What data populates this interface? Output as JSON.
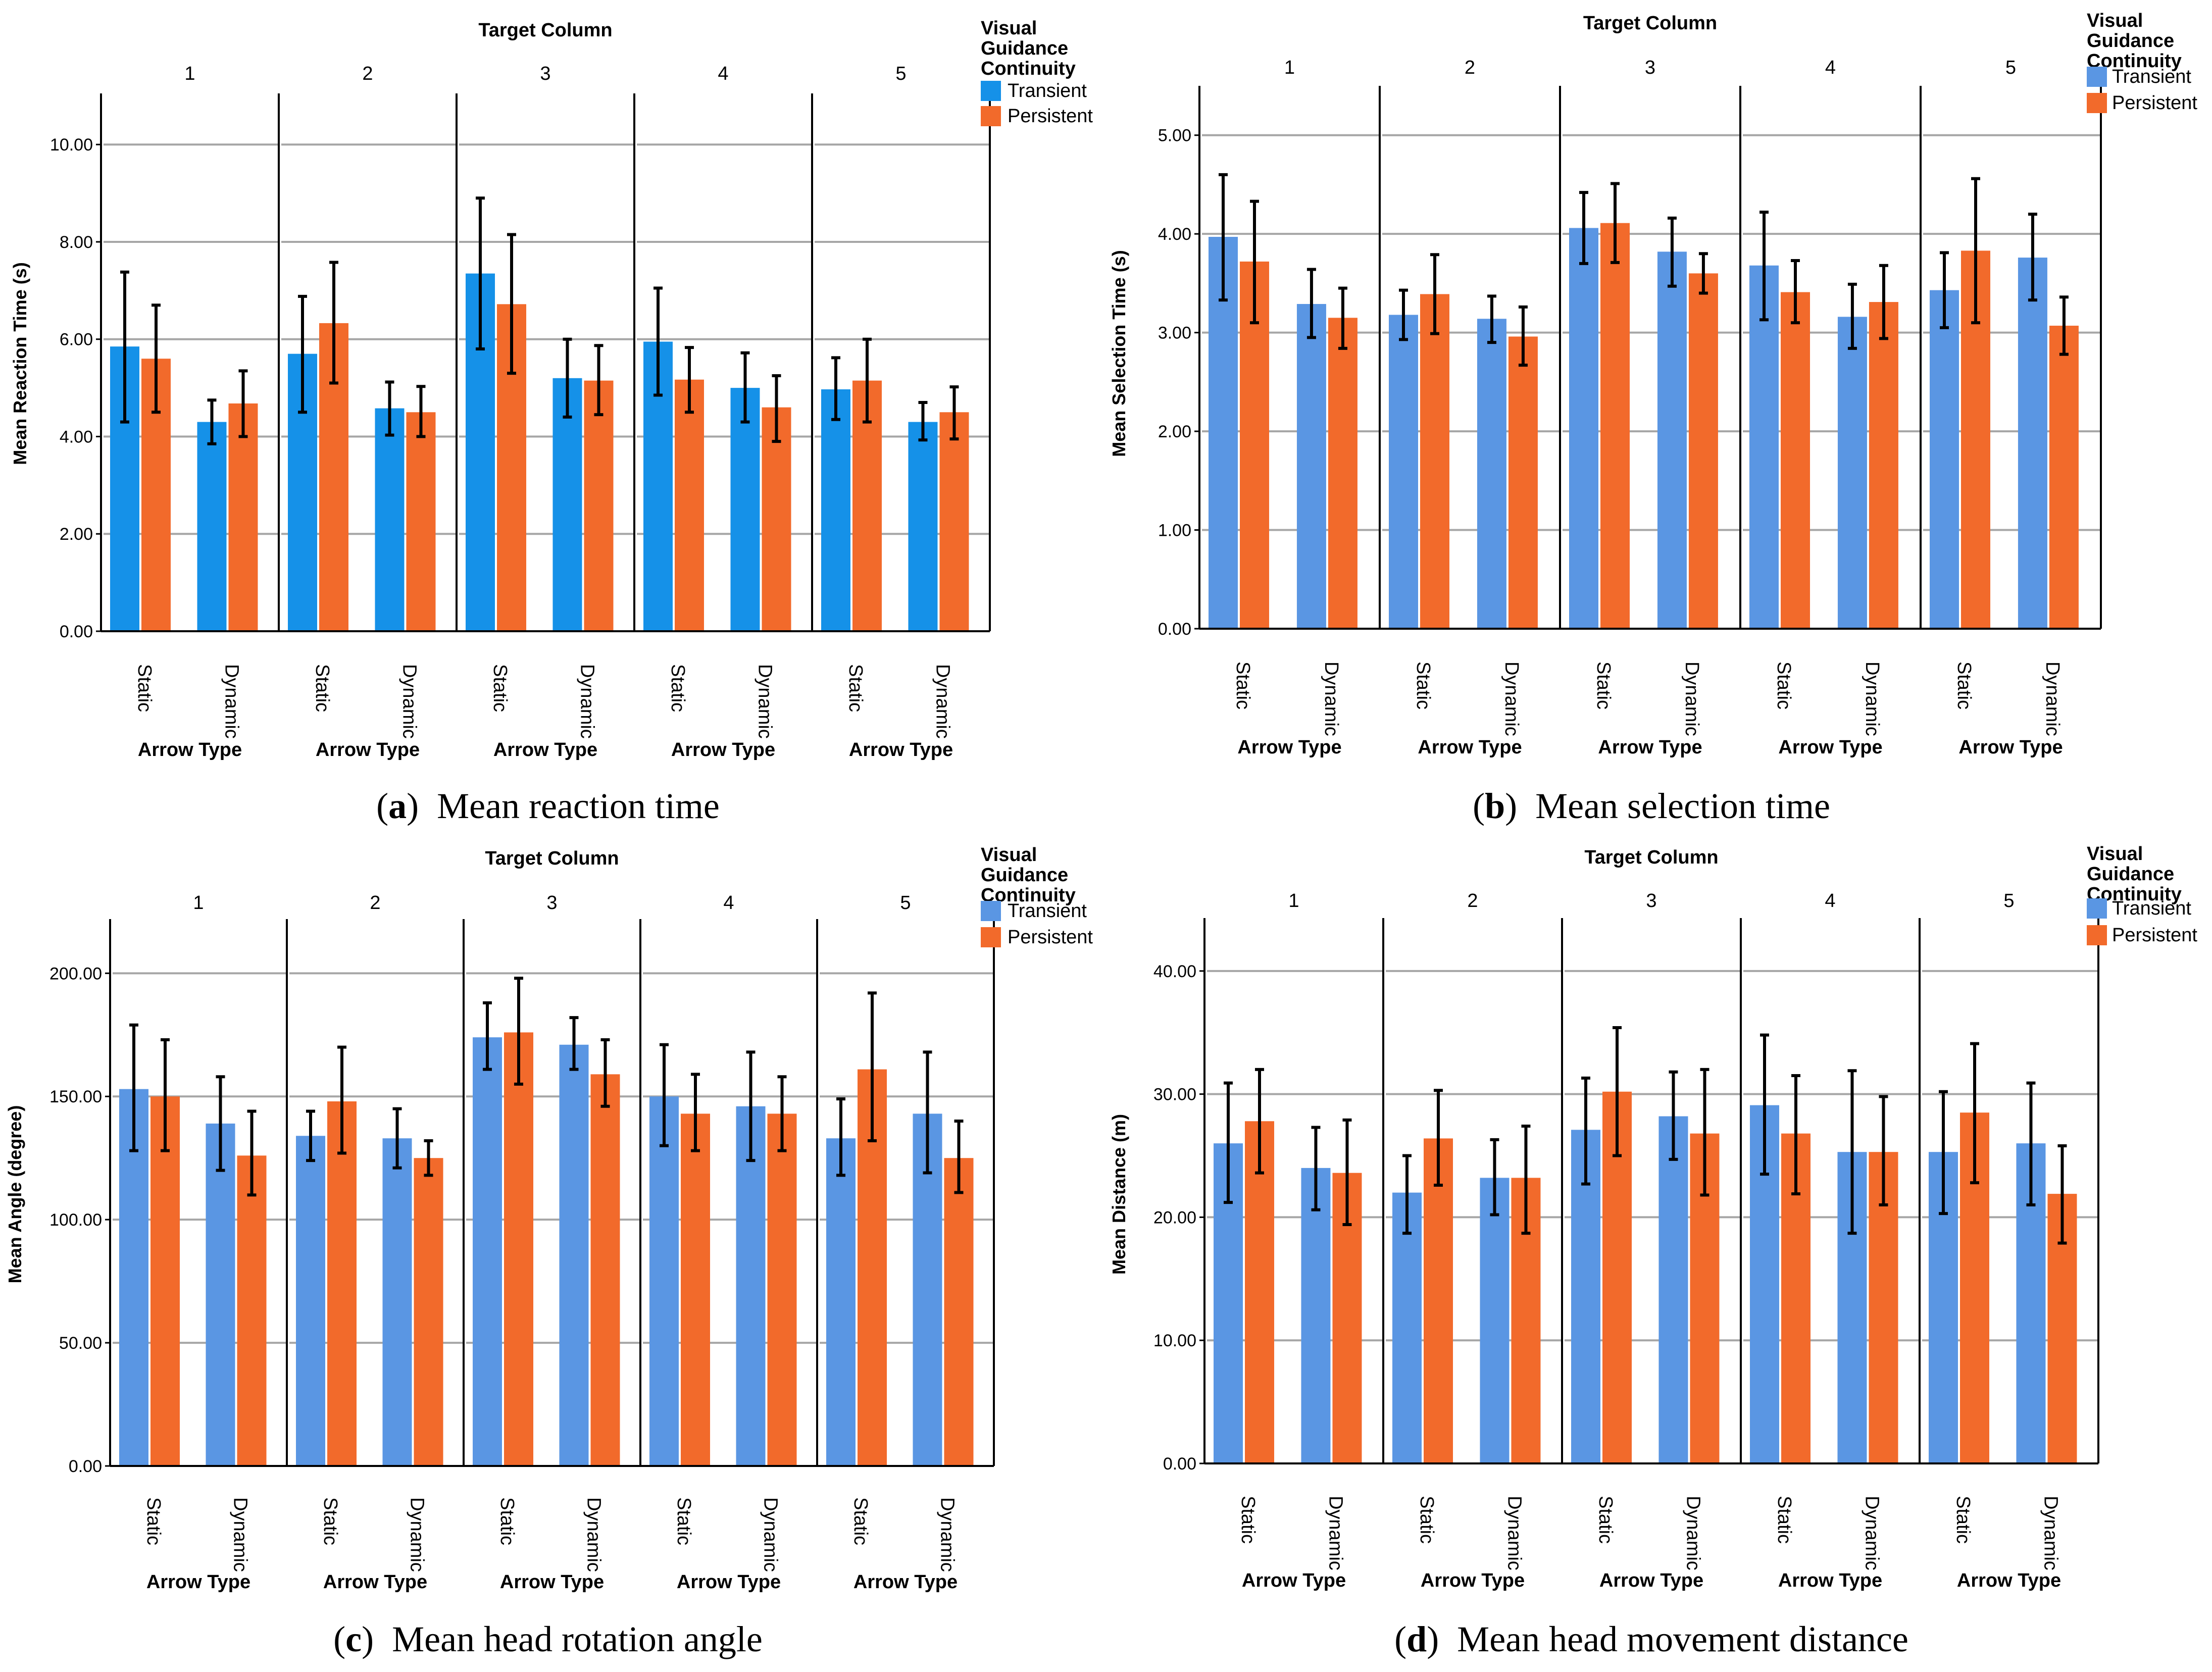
{
  "chart_data": [
    {
      "type": "bar",
      "panel": "a",
      "caption_letter": "a",
      "caption_text": "Mean reaction time",
      "facet_title": "Target Column",
      "facets": [
        "1",
        "2",
        "3",
        "4",
        "5"
      ],
      "categories": [
        "Static",
        "Dynamic"
      ],
      "xlabel": "Arrow Type",
      "ylabel": "Mean Reaction Time (s)",
      "ylim": [
        0,
        11.05
      ],
      "yticks": [
        "0.00",
        "2.00",
        "4.00",
        "6.00",
        "8.00",
        "10.00"
      ],
      "ytick_values": [
        0,
        2,
        4,
        6,
        8,
        10
      ],
      "legend_title": "Visual Guidance Continuity",
      "legend_title_lines": [
        "Visual",
        "Guidance",
        "Continuity"
      ],
      "legend_position": "top-right",
      "colors": {
        "Transient": "#1591e8",
        "Persistent": "#f26a2b"
      },
      "series": [
        {
          "name": "Transient",
          "values": [
            [
              5.85,
              4.3
            ],
            [
              5.7,
              4.58
            ],
            [
              7.35,
              5.2
            ],
            [
              5.95,
              5.0
            ],
            [
              4.97,
              4.3
            ]
          ],
          "error_low": [
            [
              4.3,
              3.85
            ],
            [
              4.5,
              4.03
            ],
            [
              5.8,
              4.4
            ],
            [
              4.85,
              4.3
            ],
            [
              4.35,
              3.93
            ]
          ],
          "error_high": [
            [
              7.38,
              4.75
            ],
            [
              6.88,
              5.12
            ],
            [
              8.9,
              6.0
            ],
            [
              7.05,
              5.72
            ],
            [
              5.62,
              4.7
            ]
          ]
        },
        {
          "name": "Persistent",
          "values": [
            [
              5.6,
              4.68
            ],
            [
              6.33,
              4.5
            ],
            [
              6.72,
              5.15
            ],
            [
              5.17,
              4.6
            ],
            [
              5.15,
              4.5
            ]
          ],
          "error_low": [
            [
              4.5,
              4.0
            ],
            [
              5.1,
              4.0
            ],
            [
              5.3,
              4.45
            ],
            [
              4.5,
              3.9
            ],
            [
              4.3,
              3.95
            ]
          ],
          "error_high": [
            [
              6.7,
              5.35
            ],
            [
              7.58,
              5.03
            ],
            [
              8.15,
              5.87
            ],
            [
              5.83,
              5.25
            ],
            [
              6.0,
              5.02
            ]
          ]
        }
      ]
    },
    {
      "type": "bar",
      "panel": "b",
      "caption_letter": "b",
      "caption_text": "Mean selection time",
      "facet_title": "Target Column",
      "facets": [
        "1",
        "2",
        "3",
        "4",
        "5"
      ],
      "categories": [
        "Static",
        "Dynamic"
      ],
      "xlabel": "Arrow Type",
      "ylabel": "Mean Selection Time (s)",
      "ylim": [
        0,
        5.5
      ],
      "yticks": [
        "0.00",
        "1.00",
        "2.00",
        "3.00",
        "4.00",
        "5.00"
      ],
      "ytick_values": [
        0,
        1,
        2,
        3,
        4,
        5
      ],
      "legend_title": "Visual Guidance Continuity",
      "legend_title_lines": [
        "Visual",
        "Guidance",
        "Continuity"
      ],
      "legend_position": "top-right",
      "colors": {
        "Transient": "#5a96e3",
        "Persistent": "#f26a2b"
      },
      "series": [
        {
          "name": "Transient",
          "values": [
            [
              3.97,
              3.29
            ],
            [
              3.18,
              3.14
            ],
            [
              4.06,
              3.82
            ],
            [
              3.68,
              3.16
            ],
            [
              3.43,
              3.76
            ]
          ],
          "error_low": [
            [
              3.33,
              2.95
            ],
            [
              2.93,
              2.9
            ],
            [
              3.7,
              3.47
            ],
            [
              3.13,
              2.84
            ],
            [
              3.05,
              3.33
            ]
          ],
          "error_high": [
            [
              4.6,
              3.64
            ],
            [
              3.43,
              3.37
            ],
            [
              4.42,
              4.16
            ],
            [
              4.22,
              3.49
            ],
            [
              3.81,
              4.2
            ]
          ]
        },
        {
          "name": "Persistent",
          "values": [
            [
              3.72,
              3.15
            ],
            [
              3.39,
              2.96
            ],
            [
              4.11,
              3.6
            ],
            [
              3.41,
              3.31
            ],
            [
              3.83,
              3.07
            ]
          ],
          "error_low": [
            [
              3.1,
              2.84
            ],
            [
              2.99,
              2.67
            ],
            [
              3.71,
              3.4
            ],
            [
              3.1,
              2.94
            ],
            [
              3.1,
              2.78
            ]
          ],
          "error_high": [
            [
              4.33,
              3.45
            ],
            [
              3.79,
              3.26
            ],
            [
              4.51,
              3.8
            ],
            [
              3.73,
              3.68
            ],
            [
              4.56,
              3.36
            ]
          ]
        }
      ]
    },
    {
      "type": "bar",
      "panel": "c",
      "caption_letter": "c",
      "caption_text": "Mean head rotation angle",
      "facet_title": "Target Column",
      "facets": [
        "1",
        "2",
        "3",
        "4",
        "5"
      ],
      "categories": [
        "Static",
        "Dynamic"
      ],
      "xlabel": "Arrow Type",
      "ylabel": "Mean Angle (degree)",
      "ylim": [
        0,
        222
      ],
      "yticks": [
        "0.00",
        "50.00",
        "100.00",
        "150.00",
        "200.00"
      ],
      "ytick_values": [
        0,
        50,
        100,
        150,
        200
      ],
      "legend_title": "Visual Guidance Continuity",
      "legend_title_lines": [
        "Visual",
        "Guidance",
        "Continuity"
      ],
      "legend_position": "top-right",
      "colors": {
        "Transient": "#5a96e3",
        "Persistent": "#f26a2b"
      },
      "series": [
        {
          "name": "Transient",
          "values": [
            [
              153,
              139
            ],
            [
              134,
              133
            ],
            [
              174,
              171
            ],
            [
              150,
              146
            ],
            [
              133,
              143
            ]
          ],
          "error_low": [
            [
              128,
              120
            ],
            [
              124,
              121
            ],
            [
              161,
              161
            ],
            [
              130,
              124
            ],
            [
              118,
              119
            ]
          ],
          "error_high": [
            [
              179,
              158
            ],
            [
              144,
              145
            ],
            [
              188,
              182
            ],
            [
              171,
              168
            ],
            [
              149,
              168
            ]
          ]
        },
        {
          "name": "Persistent",
          "values": [
            [
              150,
              126
            ],
            [
              148,
              125
            ],
            [
              176,
              159
            ],
            [
              143,
              143
            ],
            [
              161,
              125
            ]
          ],
          "error_low": [
            [
              128,
              110
            ],
            [
              127,
              118
            ],
            [
              155,
              146
            ],
            [
              128,
              128
            ],
            [
              132,
              111
            ]
          ],
          "error_high": [
            [
              173,
              144
            ],
            [
              170,
              132
            ],
            [
              198,
              173
            ],
            [
              159,
              158
            ],
            [
              192,
              140
            ]
          ]
        }
      ]
    },
    {
      "type": "bar",
      "panel": "d",
      "caption_letter": "d",
      "caption_text": "Mean head movement distance",
      "facet_title": "Target Column",
      "facets": [
        "1",
        "2",
        "3",
        "4",
        "5"
      ],
      "categories": [
        "Static",
        "Dynamic"
      ],
      "xlabel": "Arrow Type",
      "ylabel": "Mean Distance (m)",
      "ylim": [
        0,
        44.3
      ],
      "yticks": [
        "0.00",
        "10.00",
        "20.00",
        "30.00",
        "40.00"
      ],
      "ytick_values": [
        0,
        10,
        20,
        30,
        40
      ],
      "legend_title": "Visual Guidance Continuity",
      "legend_title_lines": [
        "Visual",
        "Guidance",
        "Continuity"
      ],
      "legend_position": "top-right",
      "colors": {
        "Transient": "#5a96e3",
        "Persistent": "#f26a2b"
      },
      "series": [
        {
          "name": "Transient",
          "values": [
            [
              26.0,
              24.0
            ],
            [
              22.0,
              23.2
            ],
            [
              27.1,
              28.2
            ],
            [
              29.1,
              25.3
            ],
            [
              25.3,
              26.0
            ]
          ],
          "error_low": [
            [
              21.2,
              20.6
            ],
            [
              18.7,
              20.2
            ],
            [
              22.7,
              24.7
            ],
            [
              23.5,
              18.7
            ],
            [
              20.3,
              21.0
            ]
          ],
          "error_high": [
            [
              30.9,
              27.3
            ],
            [
              25.0,
              26.3
            ],
            [
              31.3,
              31.8
            ],
            [
              34.8,
              31.9
            ],
            [
              30.2,
              30.9
            ]
          ]
        },
        {
          "name": "Persistent",
          "values": [
            [
              27.8,
              23.6
            ],
            [
              26.4,
              23.2
            ],
            [
              30.2,
              26.8
            ],
            [
              26.8,
              25.3
            ],
            [
              28.5,
              21.9
            ]
          ],
          "error_low": [
            [
              23.6,
              19.4
            ],
            [
              22.6,
              18.7
            ],
            [
              25.0,
              21.8
            ],
            [
              21.9,
              21.0
            ],
            [
              22.8,
              17.9
            ]
          ],
          "error_high": [
            [
              32.0,
              27.9
            ],
            [
              30.3,
              27.4
            ],
            [
              35.4,
              32.0
            ],
            [
              31.5,
              29.8
            ],
            [
              34.1,
              25.8
            ]
          ]
        }
      ]
    }
  ]
}
